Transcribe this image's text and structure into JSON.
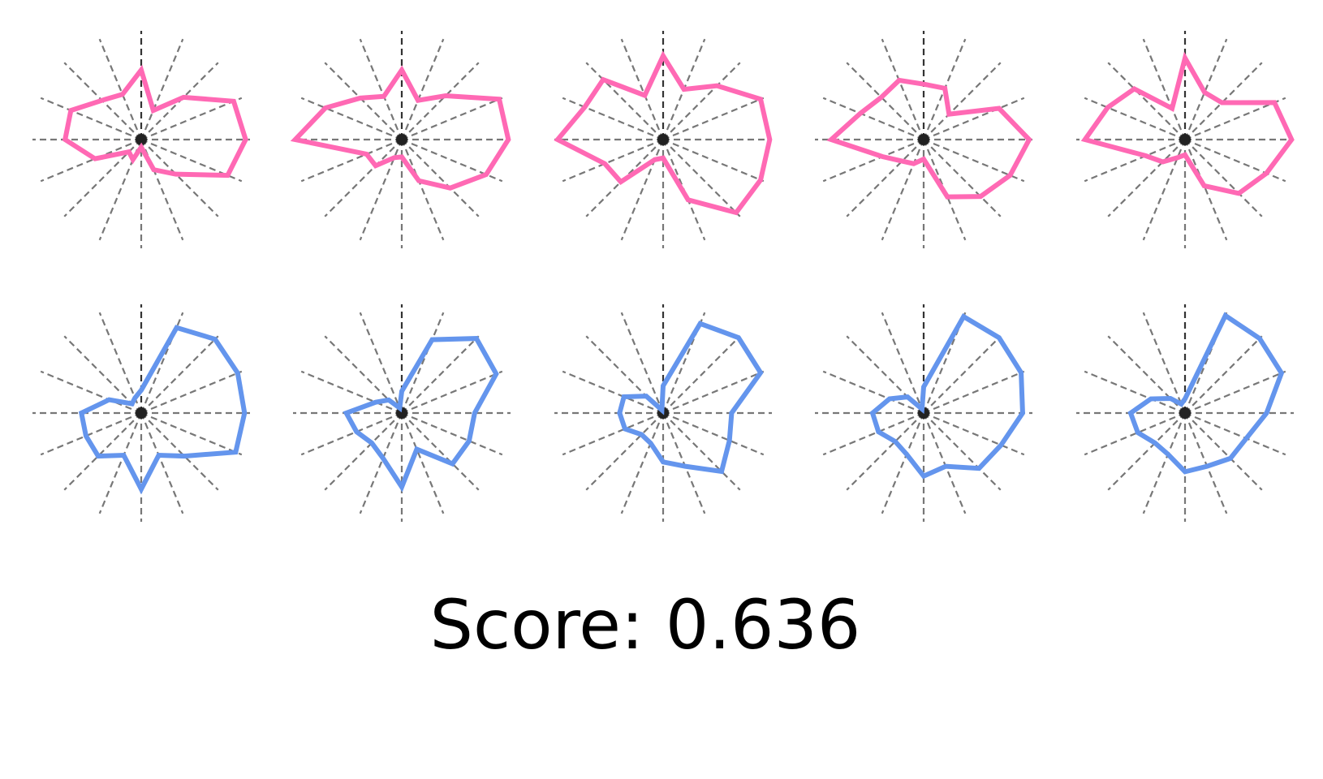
{
  "score_text": "Score: 0.636",
  "colors": {
    "top": "#ff69b4",
    "bottom": "#6495ed",
    "grid": "#777777",
    "grid_vertical": "#333333",
    "center": "#222222"
  },
  "chart_data": {
    "type": "radar-glyph-grid",
    "spokes": 16,
    "grid": true,
    "rows": [
      {
        "color_key": "top",
        "glyphs": [
          [
            0.64,
            0.29,
            0.55,
            0.92,
            0.96,
            0.86,
            0.45,
            0.3,
            0.07,
            0.2,
            0.16,
            0.46,
            0.7,
            0.7,
            0.51,
            0.45
          ],
          [
            0.64,
            0.39,
            0.57,
            0.97,
            0.98,
            0.84,
            0.63,
            0.41,
            0.16,
            0.18,
            0.34,
            0.35,
            0.98,
            0.76,
            0.54,
            0.43
          ],
          [
            0.77,
            0.5,
            0.7,
            0.97,
            0.98,
            0.97,
            0.95,
            0.6,
            0.17,
            0.2,
            0.55,
            0.58,
            0.97,
            0.78,
            0.78,
            0.44
          ],
          [
            0.51,
            0.51,
            0.33,
            0.75,
            0.97,
            0.86,
            0.74,
            0.57,
            0.18,
            0.24,
            0.28,
            0.41,
            0.85,
            0.63,
            0.55,
            0.59
          ],
          [
            0.75,
            0.47,
            0.48,
            0.89,
            0.98,
            0.81,
            0.7,
            0.46,
            0.14,
            0.18,
            0.29,
            0.39,
            0.92,
            0.77,
            0.66,
            0.31
          ]
        ]
      },
      {
        "color_key": "bottom",
        "glyphs": [
          [
            0.21,
            0.85,
            0.96,
            0.96,
            0.95,
            0.94,
            0.56,
            0.42,
            0.7,
            0.42,
            0.56,
            0.55,
            0.55,
            0.32,
            0.12,
            0.15
          ],
          [
            0.2,
            0.73,
            0.97,
            0.94,
            0.67,
            0.67,
            0.66,
            0.36,
            0.68,
            0.45,
            0.39,
            0.45,
            0.51,
            0.26,
            0.17,
            0.05
          ],
          [
            0.25,
            0.89,
            0.98,
            0.97,
            0.63,
            0.66,
            0.76,
            0.53,
            0.45,
            0.3,
            0.28,
            0.38,
            0.4,
            0.39,
            0.22,
            0.03
          ],
          [
            0.24,
            0.96,
            0.98,
            0.97,
            0.91,
            0.77,
            0.72,
            0.53,
            0.58,
            0.41,
            0.37,
            0.45,
            0.47,
            0.34,
            0.21,
            0.04
          ],
          [
            0.13,
            0.97,
            0.97,
            0.96,
            0.75,
            0.61,
            0.59,
            0.53,
            0.54,
            0.41,
            0.39,
            0.47,
            0.5,
            0.34,
            0.19,
            0.09
          ]
        ]
      }
    ]
  }
}
